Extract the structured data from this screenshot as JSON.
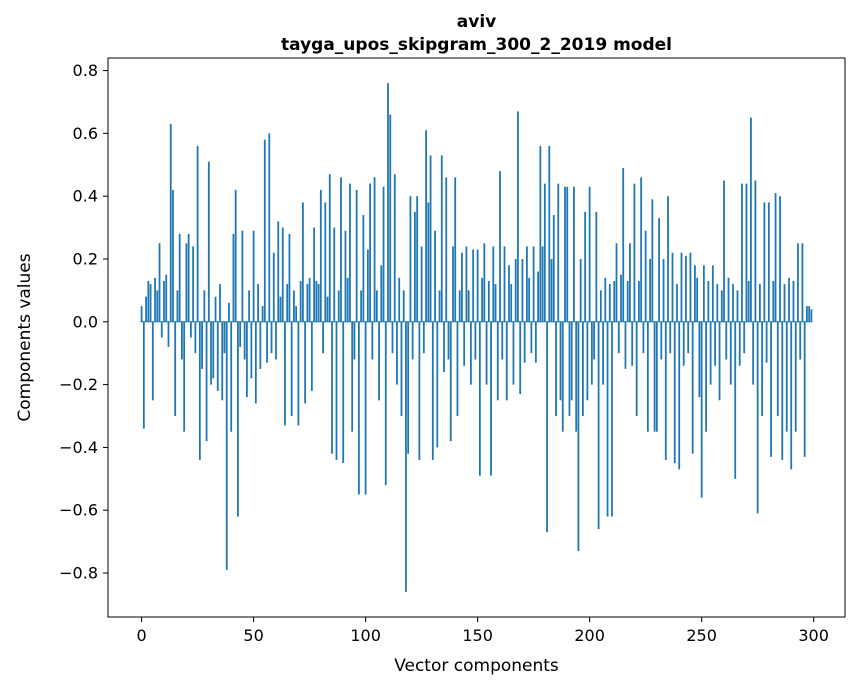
{
  "chart_data": {
    "type": "bar",
    "title_lines": [
      "aviv",
      "tayga_upos_skipgram_300_2_2019 model"
    ],
    "xlabel": "Vector components",
    "ylabel": "Components values",
    "legend": "none",
    "grid": false,
    "bar_color": "#1f77b4",
    "axis_color": "#000000",
    "xlim": [
      -15,
      314
    ],
    "ylim": [
      -0.94,
      0.84
    ],
    "xticks": [
      0,
      50,
      100,
      150,
      200,
      250,
      300
    ],
    "yticks": [
      -0.8,
      -0.6,
      -0.4,
      -0.2,
      0.0,
      0.2,
      0.4,
      0.6,
      0.8
    ],
    "x_start": 0,
    "values": [
      0.05,
      -0.34,
      0.08,
      0.13,
      0.12,
      -0.25,
      0.14,
      0.1,
      0.25,
      -0.05,
      0.13,
      0.15,
      -0.08,
      0.63,
      0.42,
      -0.3,
      0.1,
      0.28,
      -0.12,
      -0.35,
      0.25,
      0.28,
      -0.05,
      0.24,
      -0.1,
      0.56,
      -0.44,
      -0.15,
      0.1,
      -0.38,
      0.51,
      -0.2,
      -0.18,
      0.08,
      -0.22,
      0.12,
      -0.25,
      -0.1,
      -0.79,
      0.06,
      -0.35,
      0.28,
      0.42,
      -0.62,
      -0.08,
      0.29,
      -0.12,
      -0.24,
      0.1,
      -0.18,
      0.29,
      -0.26,
      0.12,
      -0.15,
      0.05,
      0.58,
      -0.13,
      0.6,
      -0.1,
      0.22,
      -0.12,
      0.32,
      0.08,
      0.3,
      -0.33,
      0.12,
      0.28,
      -0.3,
      0.1,
      0.05,
      -0.33,
      0.13,
      0.38,
      -0.26,
      0.12,
      0.14,
      -0.22,
      0.3,
      0.13,
      0.12,
      0.42,
      -0.1,
      0.38,
      0.08,
      0.47,
      -0.42,
      0.3,
      -0.44,
      0.1,
      0.46,
      -0.45,
      0.29,
      0.14,
      0.44,
      -0.35,
      -0.12,
      0.42,
      -0.55,
      0.1,
      0.34,
      -0.55,
      0.23,
      0.44,
      -0.12,
      0.46,
      0.1,
      -0.25,
      0.18,
      0.43,
      -0.52,
      0.76,
      0.66,
      -0.1,
      0.47,
      -0.2,
      0.14,
      -0.3,
      0.1,
      -0.86,
      -0.42,
      0.4,
      -0.12,
      0.35,
      0.4,
      -0.44,
      0.24,
      -0.1,
      0.61,
      0.38,
      0.53,
      -0.44,
      0.29,
      -0.4,
      0.1,
      0.53,
      -0.16,
      0.46,
      -0.12,
      -0.38,
      0.24,
      0.46,
      -0.3,
      0.1,
      0.22,
      -0.14,
      0.24,
      0.1,
      -0.2,
      0.23,
      -0.12,
      0.23,
      -0.49,
      0.14,
      0.25,
      -0.2,
      0.13,
      -0.49,
      0.24,
      0.12,
      -0.25,
      0.48,
      -0.12,
      0.24,
      -0.25,
      0.18,
      0.12,
      -0.2,
      0.2,
      0.67,
      -0.23,
      0.2,
      -0.13,
      0.24,
      0.14,
      -0.1,
      0.24,
      -0.13,
      0.16,
      0.56,
      0.24,
      0.44,
      -0.67,
      0.56,
      0.2,
      0.34,
      -0.3,
      0.44,
      -0.25,
      -0.35,
      0.43,
      0.43,
      -0.3,
      -0.25,
      0.43,
      -0.35,
      -0.73,
      0.2,
      -0.3,
      0.35,
      -0.25,
      0.43,
      -0.2,
      -0.12,
      0.35,
      -0.66,
      0.1,
      -0.2,
      0.14,
      -0.62,
      0.12,
      -0.62,
      0.13,
      0.25,
      -0.1,
      0.15,
      0.49,
      -0.15,
      0.13,
      0.25,
      -0.14,
      0.44,
      -0.3,
      0.13,
      0.46,
      -0.1,
      0.29,
      -0.35,
      0.2,
      0.39,
      -0.35,
      -0.35,
      0.33,
      -0.12,
      0.2,
      -0.44,
      0.4,
      -0.1,
      0.22,
      -0.45,
      0.12,
      -0.47,
      0.22,
      -0.14,
      0.21,
      -0.1,
      0.22,
      -0.42,
      0.18,
      0.14,
      -0.24,
      -0.56,
      0.18,
      -0.35,
      0.13,
      -0.2,
      0.18,
      -0.14,
      0.12,
      -0.25,
      0.1,
      0.45,
      -0.12,
      0.14,
      -0.2,
      0.12,
      -0.5,
      0.1,
      -0.14,
      0.44,
      -0.1,
      0.44,
      0.13,
      0.65,
      -0.2,
      0.45,
      -0.61,
      0.12,
      -0.3,
      0.38,
      -0.13,
      0.38,
      -0.43,
      0.13,
      0.41,
      -0.3,
      0.4,
      -0.44,
      0.12,
      -0.35,
      0.14,
      -0.47,
      0.13,
      -0.35,
      0.25,
      -0.12,
      0.25,
      -0.43,
      0.05,
      0.05,
      0.04
    ]
  }
}
